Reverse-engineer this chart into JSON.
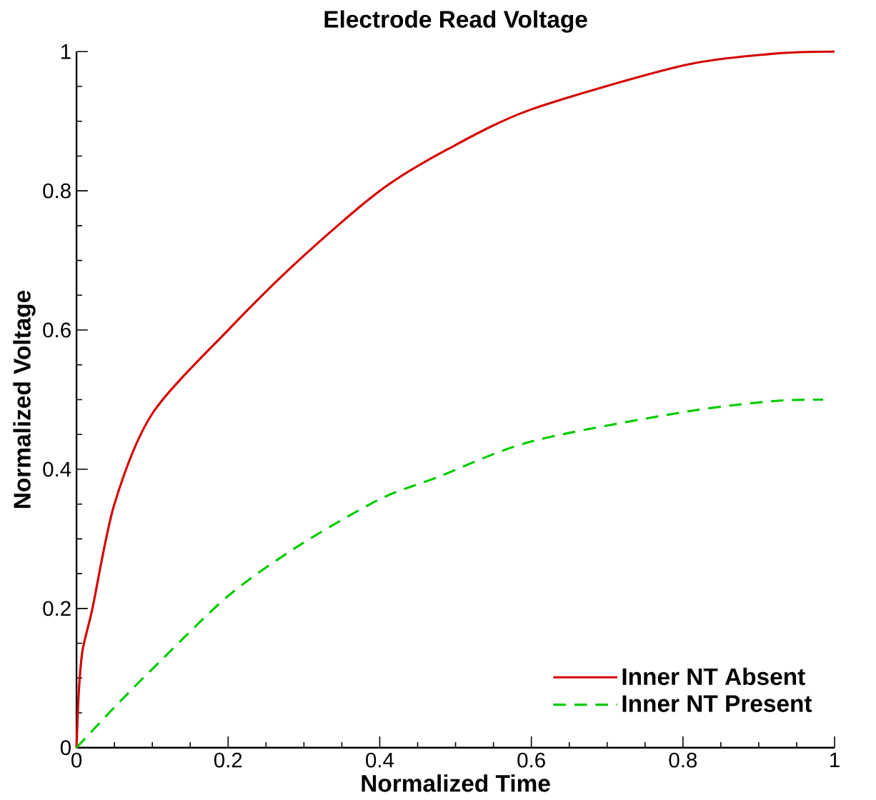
{
  "chart_data": {
    "type": "line",
    "title": "Electrode Read Voltage",
    "xlabel": "Normalized Time",
    "ylabel": "Normalized Voltage",
    "xlim": [
      0,
      1
    ],
    "ylim": [
      0,
      1
    ],
    "xticks": [
      0,
      0.2,
      0.4,
      0.6,
      0.8,
      1
    ],
    "yticks": [
      0,
      0.2,
      0.4,
      0.6,
      0.8,
      1
    ],
    "grid": false,
    "legend": "bottom right",
    "series": [
      {
        "name": "Inner NT Absent",
        "color": "#d40000",
        "line_style": "solid",
        "x": [
          0,
          0.003,
          0.008,
          0.021,
          0.05,
          0.1,
          0.2,
          0.293,
          0.4,
          0.49,
          0.6,
          0.8,
          0.92,
          1.0
        ],
        "values": [
          0,
          0.08,
          0.14,
          0.2,
          0.35,
          0.48,
          0.6,
          0.7,
          0.8,
          0.86,
          0.917,
          0.98,
          0.997,
          1.0
        ]
      },
      {
        "name": "Inner NT Present",
        "color": "#00cc00",
        "line_style": "dashed",
        "x": [
          0,
          0.05,
          0.1,
          0.2,
          0.293,
          0.4,
          0.475,
          0.6,
          0.8,
          0.92,
          0.985
        ],
        "values": [
          0,
          0.058,
          0.113,
          0.218,
          0.29,
          0.357,
          0.388,
          0.44,
          0.482,
          0.498,
          0.5
        ]
      }
    ]
  }
}
